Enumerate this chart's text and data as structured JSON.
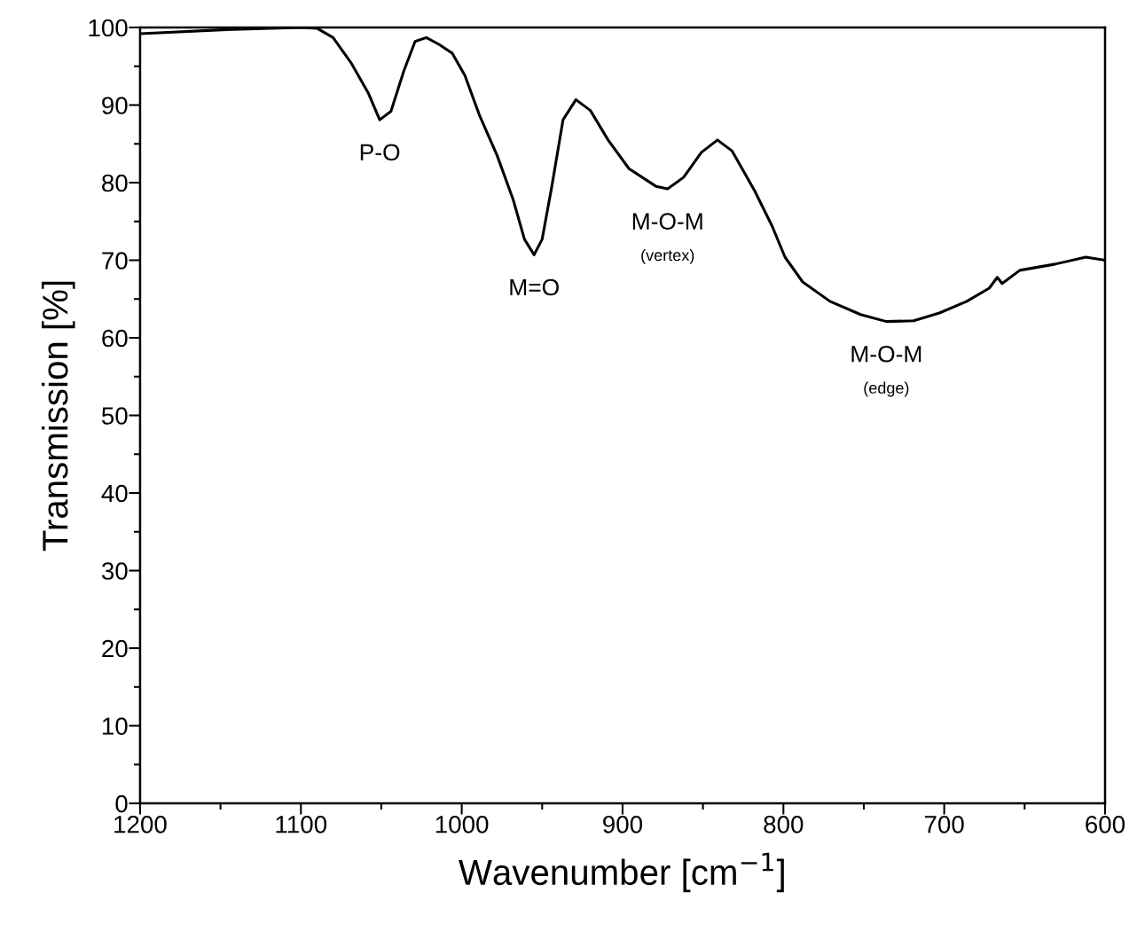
{
  "chart_data": {
    "type": "line",
    "xlabel": "Wavenumber [cm$^{−1}$]",
    "ylabel": "Transmission [%]",
    "x": [
      1200,
      1149,
      1100,
      1090,
      1080,
      1069,
      1058,
      1051,
      1044,
      1036,
      1029,
      1022,
      1014,
      1006,
      998,
      989,
      978,
      968,
      961,
      955,
      950,
      944,
      937,
      929,
      920,
      909,
      896,
      879,
      872,
      862,
      851,
      841,
      832,
      818,
      807,
      799,
      788,
      771,
      752,
      736,
      719,
      703,
      686,
      672,
      667,
      664,
      653,
      631,
      612,
      600
    ],
    "series": [
      {
        "color": "#000000",
        "values": [
          99.2,
          99.7,
          100,
          99.9,
          98.7,
          95.5,
          91.5,
          88.1,
          89.2,
          94.4,
          98.2,
          98.7,
          97.8,
          96.7,
          93.8,
          88.7,
          83.5,
          77.8,
          72.7,
          70.7,
          72.7,
          79.5,
          88.1,
          90.7,
          89.3,
          85.5,
          81.8,
          79.5,
          79.2,
          80.7,
          83.9,
          85.5,
          84.1,
          79.0,
          74.4,
          70.4,
          67.2,
          64.7,
          63.0,
          62.1,
          62.2,
          63.2,
          64.7,
          66.4,
          67.8,
          67.0,
          68.7,
          69.5,
          70.4,
          70.0
        ]
      }
    ],
    "xlim": [
      1200,
      600
    ],
    "ylim": [
      0,
      100
    ],
    "xticks": [
      1200,
      {
        "value": 1150,
        "label": null
      },
      1100,
      {
        "value": 1050,
        "label": null
      },
      1000,
      {
        "value": 950,
        "label": null
      },
      900,
      {
        "value": 850,
        "label": null
      },
      800,
      {
        "value": 750,
        "label": null
      },
      700,
      {
        "value": 650,
        "label": null
      },
      600
    ],
    "yticks": [
      0,
      {
        "value": 5,
        "label": null
      },
      10,
      {
        "value": 15,
        "label": null
      },
      20,
      {
        "value": 25,
        "label": null
      },
      30,
      {
        "value": 35,
        "label": null
      },
      40,
      {
        "value": 45,
        "label": null
      },
      50,
      {
        "value": 55,
        "label": null
      },
      60,
      {
        "value": 65,
        "label": null
      },
      70,
      {
        "value": 75,
        "label": null
      },
      80,
      {
        "value": 85,
        "label": null
      },
      90,
      {
        "value": 95,
        "label": null
      },
      100
    ],
    "annotations": [
      {
        "text": "P-O",
        "x": 1051,
        "y": 88.1
      },
      {
        "text": "M=O",
        "x": 955,
        "y": 70.7
      },
      {
        "text": "M-O-M",
        "x": 872,
        "y": 79.2
      },
      "(vertex)",
      {
        "text": "M-O-M",
        "x": 736,
        "y": 62.1
      },
      "(edge)"
    ],
    "grid": false,
    "marker": "none",
    "line_style": "solid"
  }
}
